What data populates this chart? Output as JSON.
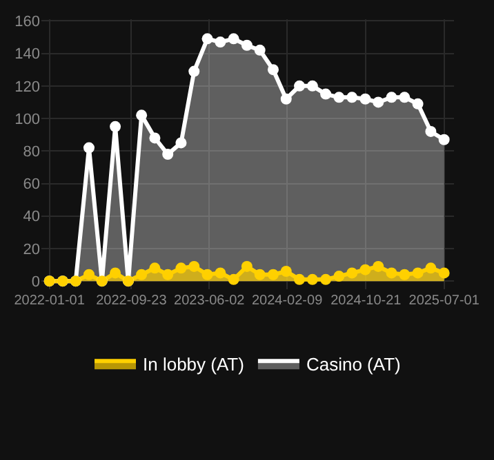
{
  "chart_data": {
    "type": "area",
    "x": [
      "2022-01-01",
      "2022-02-13",
      "2022-03-27",
      "2022-05-09",
      "2022-06-20",
      "2022-08-02",
      "2022-09-13",
      "2022-10-26",
      "2022-12-08",
      "2023-01-19",
      "2023-03-03",
      "2023-04-14",
      "2023-05-27",
      "2023-07-08",
      "2023-08-20",
      "2023-10-02",
      "2023-11-13",
      "2023-12-26",
      "2024-02-06",
      "2024-03-20",
      "2024-05-01",
      "2024-06-13",
      "2024-07-26",
      "2024-09-06",
      "2024-10-19",
      "2024-11-30",
      "2025-01-12",
      "2025-02-23",
      "2025-04-07",
      "2025-05-19",
      "2025-07-01"
    ],
    "series": [
      {
        "name": "In lobby (AT)",
        "color": "#ffd000",
        "values": [
          0,
          0,
          0,
          4,
          0,
          5,
          0,
          4,
          8,
          4,
          8,
          9,
          4,
          5,
          1,
          9,
          4,
          4,
          6,
          1,
          1,
          1,
          3,
          5,
          7,
          9,
          5,
          4,
          5,
          8,
          5
        ]
      },
      {
        "name": "Casino (AT)",
        "color": "#ffffff",
        "values": [
          0,
          0,
          0,
          82,
          0,
          95,
          0,
          102,
          88,
          78,
          85,
          129,
          149,
          147,
          149,
          145,
          142,
          130,
          112,
          120,
          120,
          115,
          113,
          113,
          112,
          110,
          113,
          113,
          109,
          92,
          87
        ]
      }
    ],
    "xlim": [
      "2021-12-06",
      "2025-08-02"
    ],
    "xticks": [
      "2022-01-01",
      "2022-09-23",
      "2023-06-02",
      "2024-02-09",
      "2024-10-21",
      "2025-07-01"
    ],
    "ylim": [
      -5,
      161
    ],
    "yticks": [
      0,
      20,
      40,
      60,
      80,
      100,
      120,
      140,
      160
    ],
    "grid": true,
    "legend": "bottom",
    "marker": "circle",
    "line_style": "solid"
  }
}
